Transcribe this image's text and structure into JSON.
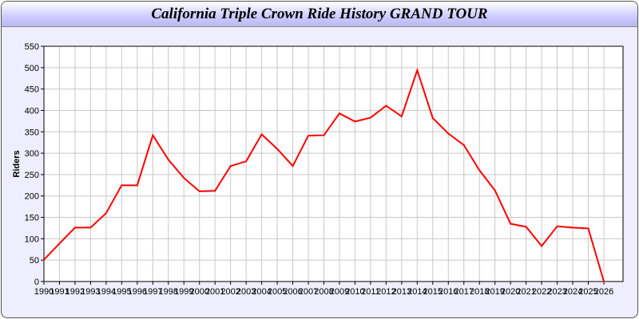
{
  "chart_data": {
    "type": "line",
    "title": "California Triple Crown Ride History GRAND TOUR",
    "xlabel": "",
    "ylabel": "Riders",
    "xlim": [
      1990,
      2026
    ],
    "ylim": [
      0,
      550
    ],
    "yticks": [
      0,
      50,
      100,
      150,
      200,
      250,
      300,
      350,
      400,
      450,
      500,
      550
    ],
    "grid": true,
    "line_color": "#ff0000",
    "series": [
      {
        "x": [
          1990,
          1991,
          1992,
          1993,
          1994,
          1995,
          1996,
          1997,
          1998,
          1999,
          2000,
          2001,
          2002,
          2003,
          2004,
          2005,
          2006,
          2007,
          2008,
          2009,
          2010,
          2011,
          2012,
          2013,
          2014,
          2015,
          2016,
          2017,
          2018,
          2019,
          2020,
          2021,
          2022,
          2023,
          2024,
          2025,
          2026
        ],
        "y": [
          51,
          89,
          126,
          126,
          160,
          225,
          225,
          342,
          285,
          242,
          211,
          212,
          270,
          281,
          344,
          310,
          270,
          341,
          342,
          393,
          374,
          383,
          411,
          386,
          494,
          382,
          346,
          319,
          260,
          213,
          135,
          128,
          83,
          129,
          126,
          124,
          0
        ]
      }
    ]
  }
}
